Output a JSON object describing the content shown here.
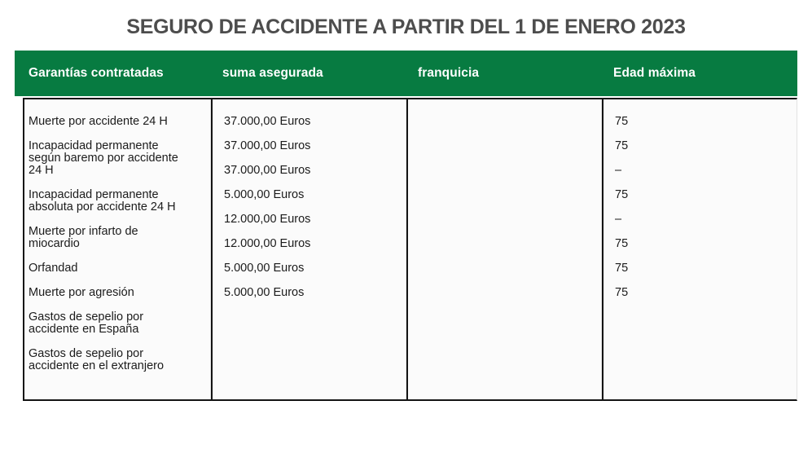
{
  "title": "SEGURO DE ACCIDENTE A PARTIR DEL 1 DE ENERO 2023",
  "colors": {
    "header_green": "#077b41",
    "border_dark": "#141414",
    "title_gray": "#4d4d4d"
  },
  "table": {
    "headers": {
      "garantias": "Garantías contratadas",
      "suma": "suma asegurada",
      "franquicia": "franquicia",
      "edad": "Edad máxima"
    },
    "garantias": [
      "Muerte por accidente 24 H",
      "Incapacidad permanente\nsegún baremo por accidente\n24 H",
      "Incapacidad permanente\nabsoluta por accidente 24 H",
      "Muerte por infarto de\nmiocardio",
      "Orfandad",
      "Muerte por agresión",
      "Gastos de sepelio por\naccidente en España",
      "Gastos de sepelio por\naccidente en el extranjero"
    ],
    "sumas": [
      "37.000,00 Euros",
      "37.000,00 Euros",
      "37.000,00 Euros",
      "5.000,00 Euros",
      "12.000,00 Euros",
      "12.000,00 Euros",
      "5.000,00 Euros",
      "5.000,00 Euros"
    ],
    "franquicias": [],
    "edades": [
      "75",
      "75",
      "–",
      "75",
      "–",
      "75",
      "75",
      "75"
    ]
  }
}
